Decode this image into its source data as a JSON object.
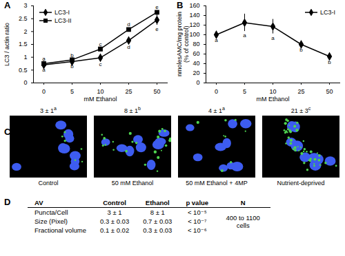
{
  "panels": [
    "A",
    "B",
    "C",
    "D"
  ],
  "chart_data": [
    {
      "type": "line",
      "categories": [
        "0",
        "5",
        "10",
        "25",
        "50"
      ],
      "xlabel": "mM Ethanol",
      "ylabel": "LC3 / actin ratio",
      "ylim": [
        0,
        3
      ],
      "yticks": [
        0,
        0.5,
        1,
        1.5,
        2,
        2.5,
        3
      ],
      "legend": "top-left",
      "series": [
        {
          "name": "LC3-I",
          "color": "#000000",
          "marker": "diamond",
          "values": [
            0.7,
            0.83,
            0.98,
            1.65,
            2.45
          ],
          "errors": [
            0.03,
            0.03,
            0.1,
            0.1,
            0.2
          ],
          "letters": [
            "a",
            "b",
            "c",
            "d",
            "e"
          ]
        },
        {
          "name": "LC3-II",
          "color": "#000000",
          "marker": "square",
          "values": [
            0.75,
            0.9,
            1.32,
            2.08,
            2.75
          ],
          "errors": [
            0.03,
            0.03,
            0.03,
            0.05,
            0.05
          ],
          "letters": [
            "a",
            "b",
            "c",
            "d",
            "e"
          ]
        }
      ]
    },
    {
      "type": "line",
      "categories": [
        "0",
        "5",
        "10",
        "25",
        "50"
      ],
      "xlabel": "mM Ethanol",
      "ylabel": "nmolesAMC/mg protein\n(% of control)",
      "ylim": [
        0,
        160
      ],
      "yticks": [
        0,
        20,
        40,
        60,
        80,
        100,
        120,
        140,
        160
      ],
      "legend": "top-right",
      "series": [
        {
          "name": "LC3-I",
          "color": "#000000",
          "marker": "diamond",
          "values": [
            100,
            125,
            117,
            80,
            55
          ],
          "errors": [
            3,
            18,
            15,
            3,
            4
          ],
          "letters": [
            "a",
            "a",
            "a",
            "b",
            "b"
          ]
        }
      ]
    }
  ],
  "panel_c": {
    "images": [
      {
        "count": "3 ± 1",
        "letter": "a",
        "caption": "Control"
      },
      {
        "count": "8 ± 1",
        "letter": "b",
        "caption": "50 mM Ethanol"
      },
      {
        "count": "4 ± 1",
        "letter": "a",
        "caption": "50 mM Ethanol + 4MP"
      },
      {
        "count": "21 ± 3",
        "letter": "c",
        "caption": "Nutrient-deprived"
      }
    ]
  },
  "panel_d": {
    "header": [
      "AV",
      "Control",
      "Ethanol",
      "p value",
      "N"
    ],
    "rows": [
      [
        "Puncta/Cell",
        "3 ± 1",
        "8 ± 1",
        "< 10⁻⁵"
      ],
      [
        "Size (Pixel)",
        "0.3 ± 0.03",
        "0.7 ± 0.03",
        "< 10⁻⁷"
      ],
      [
        "Fractional volume",
        "0.1 ± 0.02",
        "0.3 ± 0.03",
        "< 10⁻⁶"
      ]
    ],
    "n": "400 to 1100 cells"
  }
}
